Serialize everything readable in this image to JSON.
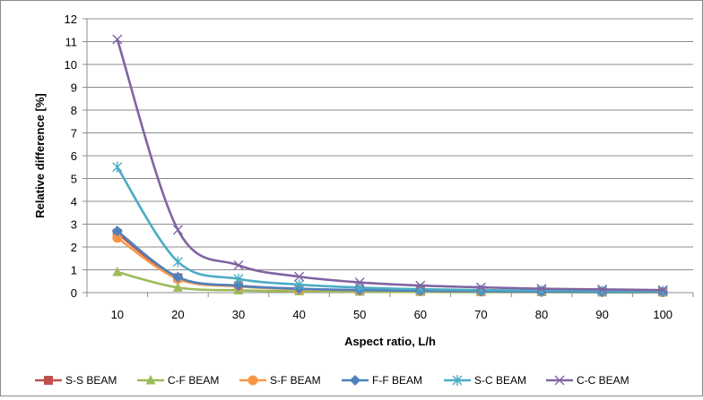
{
  "chart_data": {
    "type": "line",
    "title": "",
    "xlabel": "Aspect ratio, L/h",
    "ylabel": "Relative difference [%]",
    "categories": [
      "10",
      "20",
      "30",
      "40",
      "50",
      "60",
      "70",
      "80",
      "90",
      "100"
    ],
    "x": [
      10,
      20,
      30,
      40,
      50,
      60,
      70,
      80,
      90,
      100
    ],
    "yticks": [
      "0",
      "1",
      "2",
      "3",
      "4",
      "5",
      "6",
      "7",
      "8",
      "9",
      "10",
      "11",
      "12"
    ],
    "ylim": [
      0,
      12
    ],
    "grid": true,
    "legend_position": "bottom",
    "series": [
      {
        "name": "S-S BEAM",
        "color": "#c0504d",
        "marker": "square",
        "values": [
          2.6,
          0.65,
          0.3,
          0.17,
          0.1,
          0.07,
          0.05,
          0.04,
          0.03,
          0.03
        ]
      },
      {
        "name": "C-F BEAM",
        "color": "#9bbb59",
        "marker": "triangle",
        "values": [
          0.9,
          0.22,
          0.1,
          0.06,
          0.04,
          0.03,
          0.02,
          0.02,
          0.01,
          0.01
        ]
      },
      {
        "name": "S-F BEAM",
        "color": "#f79646",
        "marker": "circle",
        "values": [
          2.4,
          0.6,
          0.27,
          0.15,
          0.1,
          0.07,
          0.05,
          0.04,
          0.03,
          0.02
        ]
      },
      {
        "name": "F-F BEAM",
        "color": "#4f81bd",
        "marker": "diamond",
        "values": [
          2.7,
          0.68,
          0.3,
          0.17,
          0.11,
          0.08,
          0.06,
          0.04,
          0.03,
          0.03
        ]
      },
      {
        "name": "S-C BEAM",
        "color": "#4bacc6",
        "marker": "star",
        "values": [
          5.5,
          1.35,
          0.6,
          0.35,
          0.22,
          0.15,
          0.11,
          0.09,
          0.07,
          0.06
        ]
      },
      {
        "name": "C-C BEAM",
        "color": "#8064a2",
        "marker": "x",
        "values": [
          11.1,
          2.75,
          1.2,
          0.7,
          0.45,
          0.31,
          0.23,
          0.17,
          0.14,
          0.11
        ]
      }
    ]
  }
}
